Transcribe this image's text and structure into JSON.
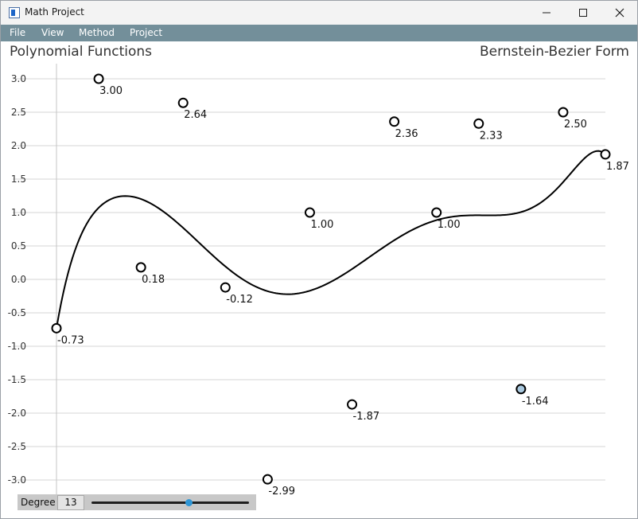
{
  "window": {
    "title": "Math Project"
  },
  "menu": [
    "File",
    "View",
    "Method",
    "Project"
  ],
  "headings": {
    "left": "Polynomial Functions",
    "right": "Bernstein-Bezier Form"
  },
  "chart_data": {
    "type": "line",
    "title": "",
    "xlabel": "",
    "ylabel": "",
    "ylim": [
      -3.0,
      3.0
    ],
    "yticks": [
      "3.0",
      "2.5",
      "2.0",
      "1.5",
      "1.0",
      "0.5",
      "0.0",
      "-0.5",
      "-1.0",
      "-1.5",
      "-2.0",
      "-2.5",
      "-3.0"
    ],
    "grid": true,
    "control_points": [
      {
        "x": 0,
        "y": -0.73,
        "label": "-0.73"
      },
      {
        "x": 1,
        "y": 3.0,
        "label": "3.00"
      },
      {
        "x": 2,
        "y": 0.18,
        "label": "0.18"
      },
      {
        "x": 3,
        "y": 2.64,
        "label": "2.64"
      },
      {
        "x": 4,
        "y": -0.12,
        "label": "-0.12"
      },
      {
        "x": 5,
        "y": -2.99,
        "label": "-2.99"
      },
      {
        "x": 6,
        "y": 1.0,
        "label": "1.00"
      },
      {
        "x": 7,
        "y": -1.87,
        "label": "-1.87"
      },
      {
        "x": 8,
        "y": 2.36,
        "label": "2.36"
      },
      {
        "x": 9,
        "y": 1.0,
        "label": "1.00"
      },
      {
        "x": 10,
        "y": 2.33,
        "label": "2.33"
      },
      {
        "x": 11,
        "y": -1.64,
        "label": "-1.64",
        "selected": true
      },
      {
        "x": 12,
        "y": 2.5,
        "label": "2.50"
      },
      {
        "x": 13,
        "y": 1.87,
        "label": "1.87"
      }
    ],
    "colors": {
      "curve": "#000000",
      "grid": "#d4d4d4",
      "point_fill": "#ffffff",
      "selected_fill": "#a9c8de"
    }
  },
  "degree": {
    "label": "Degree",
    "value": "13",
    "slider_fraction": 0.62,
    "thumb_color": "#2e96d6"
  }
}
